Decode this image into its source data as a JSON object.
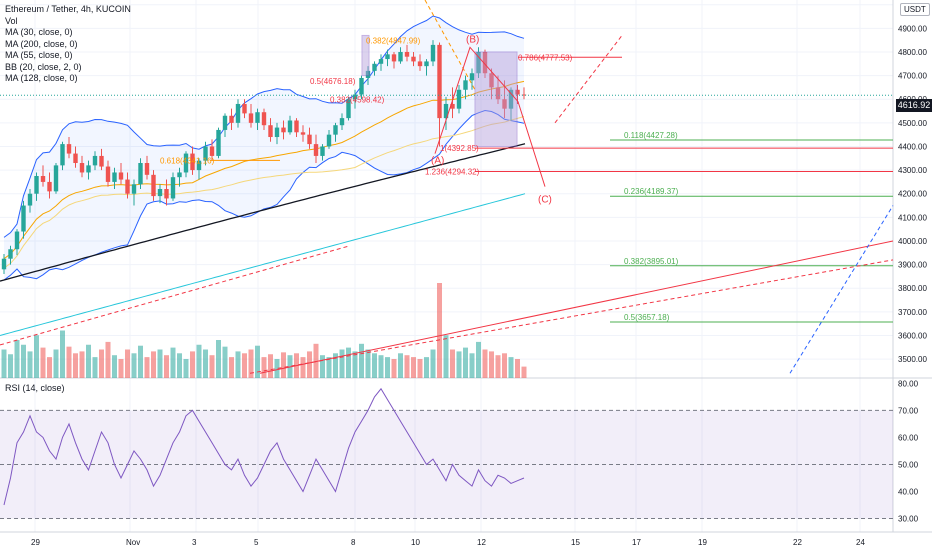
{
  "legend": {
    "symbol": "Ethereum / Tether, 4h, KUCOIN",
    "lines": [
      "Vol",
      "MA (30, close, 0)",
      "MA (200, close, 0)",
      "MA (55, close, 0)",
      "BB (20, close, 2, 0)",
      "MA (128, close, 0)"
    ]
  },
  "rsi_title": "RSI (14, close)",
  "currency": "USDT",
  "current_price": "4616.92",
  "colors": {
    "up": "#26a69a",
    "down": "#ef5350",
    "bb": "#2962ff",
    "ma30": "#f7a600",
    "ma55": "#26a69a",
    "ma128": "#131722",
    "ma200": "#26c6da",
    "fib": "#4caf50",
    "red": "#f23645",
    "orange": "#ff9800",
    "rsi": "#7e57c2",
    "purple_box": "#b39ddb",
    "blue_dash": "#2962ff"
  },
  "chart_data": [
    {
      "type": "candlestick",
      "title": "Ethereum / Tether, 4h, KUCOIN",
      "ylim": [
        3420,
        5020
      ],
      "y_ticks": [
        "5000.00",
        "4900.00",
        "4800.00",
        "4700.00",
        "4600.00",
        "4500.00",
        "4400.00",
        "4300.00",
        "4200.00",
        "4100.00",
        "4000.00",
        "3900.00",
        "3800.00",
        "3700.00",
        "3600.00",
        "3500.00"
      ],
      "x_ticks": [
        "29",
        "Nov",
        "3",
        "5",
        "8",
        "10",
        "12",
        "15",
        "17",
        "19",
        "22",
        "24"
      ],
      "ohlc": [
        [
          3880,
          3945,
          3860,
          3925
        ],
        [
          3925,
          3980,
          3900,
          3965
        ],
        [
          3965,
          4050,
          3940,
          4040
        ],
        [
          4040,
          4170,
          4010,
          4150
        ],
        [
          4150,
          4220,
          4120,
          4200
        ],
        [
          4200,
          4290,
          4170,
          4275
        ],
        [
          4275,
          4320,
          4230,
          4250
        ],
        [
          4250,
          4290,
          4180,
          4210
        ],
        [
          4210,
          4330,
          4200,
          4320
        ],
        [
          4320,
          4420,
          4300,
          4410
        ],
        [
          4410,
          4440,
          4350,
          4370
        ],
        [
          4370,
          4400,
          4310,
          4330
        ],
        [
          4330,
          4360,
          4270,
          4290
        ],
        [
          4290,
          4340,
          4260,
          4320
        ],
        [
          4320,
          4380,
          4300,
          4360
        ],
        [
          4360,
          4390,
          4300,
          4315
        ],
        [
          4315,
          4340,
          4230,
          4250
        ],
        [
          4250,
          4310,
          4220,
          4290
        ],
        [
          4290,
          4330,
          4240,
          4260
        ],
        [
          4260,
          4290,
          4180,
          4200
        ],
        [
          4200,
          4260,
          4150,
          4240
        ],
        [
          4240,
          4350,
          4220,
          4330
        ],
        [
          4330,
          4360,
          4260,
          4280
        ],
        [
          4280,
          4300,
          4170,
          4190
        ],
        [
          4190,
          4240,
          4160,
          4220
        ],
        [
          4220,
          4260,
          4150,
          4180
        ],
        [
          4180,
          4290,
          4170,
          4270
        ],
        [
          4270,
          4310,
          4230,
          4290
        ],
        [
          4290,
          4380,
          4270,
          4370
        ],
        [
          4370,
          4400,
          4280,
          4300
        ],
        [
          4300,
          4350,
          4260,
          4340
        ],
        [
          4340,
          4420,
          4320,
          4400
        ],
        [
          4400,
          4430,
          4340,
          4360
        ],
        [
          4360,
          4480,
          4350,
          4470
        ],
        [
          4470,
          4540,
          4440,
          4530
        ],
        [
          4530,
          4560,
          4470,
          4500
        ],
        [
          4500,
          4600,
          4480,
          4580
        ],
        [
          4580,
          4600,
          4520,
          4540
        ],
        [
          4540,
          4580,
          4480,
          4500
        ],
        [
          4500,
          4560,
          4470,
          4545
        ],
        [
          4545,
          4560,
          4470,
          4490
        ],
        [
          4490,
          4520,
          4420,
          4440
        ],
        [
          4440,
          4500,
          4410,
          4480
        ],
        [
          4480,
          4510,
          4430,
          4460
        ],
        [
          4460,
          4530,
          4450,
          4510
        ],
        [
          4510,
          4520,
          4440,
          4460
        ],
        [
          4460,
          4490,
          4420,
          4450
        ],
        [
          4450,
          4480,
          4390,
          4410
        ],
        [
          4410,
          4450,
          4330,
          4360
        ],
        [
          4360,
          4410,
          4340,
          4400
        ],
        [
          4400,
          4470,
          4390,
          4450
        ],
        [
          4450,
          4500,
          4420,
          4490
        ],
        [
          4490,
          4540,
          4470,
          4520
        ],
        [
          4520,
          4610,
          4510,
          4600
        ],
        [
          4600,
          4640,
          4560,
          4620
        ],
        [
          4620,
          4700,
          4600,
          4690
        ],
        [
          4690,
          4740,
          4660,
          4720
        ],
        [
          4720,
          4760,
          4700,
          4750
        ],
        [
          4750,
          4790,
          4720,
          4770
        ],
        [
          4770,
          4810,
          4740,
          4790
        ],
        [
          4790,
          4800,
          4730,
          4760
        ],
        [
          4760,
          4820,
          4750,
          4800
        ],
        [
          4800,
          4830,
          4760,
          4780
        ],
        [
          4780,
          4800,
          4740,
          4760
        ],
        [
          4760,
          4790,
          4720,
          4740
        ],
        [
          4740,
          4770,
          4700,
          4760
        ],
        [
          4760,
          4850,
          4740,
          4830
        ],
        [
          4830,
          4840,
          4400,
          4520
        ],
        [
          4520,
          4610,
          4470,
          4580
        ],
        [
          4580,
          4650,
          4520,
          4560
        ],
        [
          4560,
          4660,
          4540,
          4640
        ],
        [
          4640,
          4700,
          4600,
          4680
        ],
        [
          4680,
          4730,
          4640,
          4710
        ],
        [
          4710,
          4820,
          4690,
          4800
        ],
        [
          4800,
          4810,
          4690,
          4710
        ],
        [
          4710,
          4730,
          4600,
          4650
        ],
        [
          4650,
          4700,
          4580,
          4600
        ],
        [
          4600,
          4680,
          4520,
          4560
        ],
        [
          4560,
          4650,
          4510,
          4640
        ],
        [
          4640,
          4660,
          4580,
          4620
        ],
        [
          4620,
          4650,
          4600,
          4617
        ]
      ],
      "volume": [
        0.3,
        0.25,
        0.4,
        0.35,
        0.28,
        0.45,
        0.32,
        0.22,
        0.3,
        0.5,
        0.33,
        0.26,
        0.28,
        0.35,
        0.22,
        0.3,
        0.38,
        0.24,
        0.2,
        0.3,
        0.26,
        0.34,
        0.22,
        0.28,
        0.3,
        0.24,
        0.32,
        0.26,
        0.2,
        0.28,
        0.35,
        0.3,
        0.24,
        0.4,
        0.33,
        0.22,
        0.28,
        0.26,
        0.3,
        0.34,
        0.22,
        0.25,
        0.2,
        0.27,
        0.24,
        0.26,
        0.22,
        0.28,
        0.36,
        0.24,
        0.22,
        0.26,
        0.3,
        0.32,
        0.28,
        0.36,
        0.3,
        0.26,
        0.24,
        0.22,
        0.2,
        0.26,
        0.24,
        0.22,
        0.2,
        0.22,
        0.3,
        1.0,
        0.45,
        0.3,
        0.28,
        0.32,
        0.26,
        0.38,
        0.3,
        0.28,
        0.24,
        0.26,
        0.22,
        0.2,
        0.12
      ],
      "annotations": [
        {
          "text": "(A)",
          "price": 4392.85,
          "color": "#f23645"
        },
        {
          "text": "(B)",
          "price": 4820,
          "color": "#f23645"
        },
        {
          "text": "(C)",
          "price": 4230,
          "color": "#f23645"
        },
        {
          "text": "0.382(4847.99)",
          "price": 4847.99,
          "color": "#ff9800"
        },
        {
          "text": "0.5(4676.18)",
          "price": 4676.18,
          "color": "#f23645"
        },
        {
          "text": "0.382(4598.42)",
          "price": 4598.42,
          "color": "#f23645"
        },
        {
          "text": "0.618(4341.16)",
          "price": 4341.16,
          "color": "#ff9800"
        },
        {
          "text": "0.786(4777.53)",
          "price": 4777.53,
          "color": "#f23645"
        },
        {
          "text": "1(4392.85)",
          "price": 4392.85,
          "color": "#f23645"
        },
        {
          "text": "1.236(4294.32)",
          "price": 4294.32,
          "color": "#f23645"
        },
        {
          "text": "0.118(4427.28)",
          "price": 4427.28,
          "color": "#4caf50"
        },
        {
          "text": "0.236(4189.37)",
          "price": 4189.37,
          "color": "#4caf50"
        },
        {
          "text": "0.382(3895.01)",
          "price": 3895.01,
          "color": "#4caf50"
        },
        {
          "text": "0.5(3657.18)",
          "price": 3657.18,
          "color": "#4caf50"
        }
      ],
      "horizontal_levels": [
        4427.28,
        4392.85,
        4294.32,
        4189.37,
        3895.01,
        3657.18
      ]
    },
    {
      "type": "line",
      "title": "RSI (14, close)",
      "ylim": [
        25,
        82
      ],
      "y_ticks": [
        "80.00",
        "70.00",
        "60.00",
        "50.00",
        "40.00",
        "30.00"
      ],
      "band": [
        30,
        70
      ],
      "midline": 50,
      "values": [
        35,
        45,
        58,
        62,
        68,
        62,
        60,
        55,
        52,
        60,
        65,
        58,
        52,
        48,
        55,
        62,
        58,
        50,
        45,
        50,
        55,
        52,
        48,
        42,
        46,
        52,
        58,
        62,
        68,
        70,
        66,
        62,
        58,
        54,
        50,
        48,
        52,
        46,
        42,
        45,
        50,
        55,
        58,
        52,
        48,
        44,
        40,
        46,
        52,
        48,
        44,
        40,
        48,
        56,
        62,
        66,
        70,
        75,
        78,
        74,
        70,
        66,
        62,
        58,
        54,
        50,
        52,
        48,
        44,
        50,
        46,
        44,
        42,
        48,
        44,
        42,
        46,
        45,
        43,
        44,
        45
      ]
    }
  ]
}
